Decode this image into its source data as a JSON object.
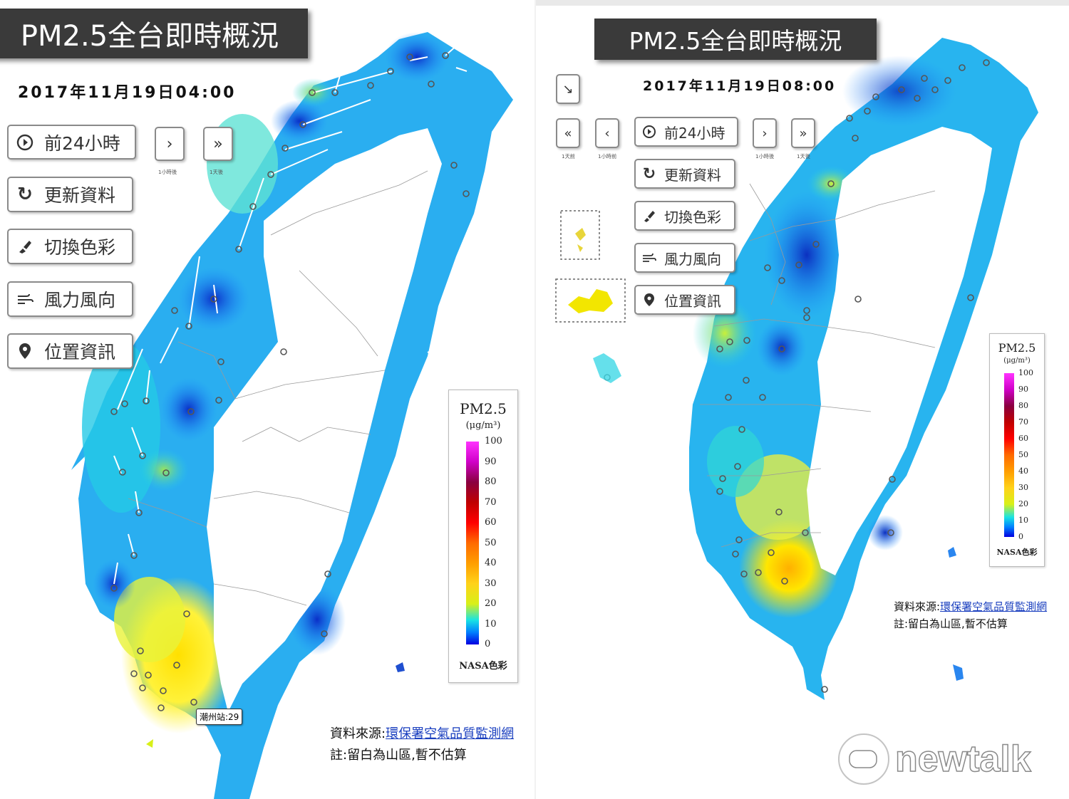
{
  "left": {
    "title": "PM2.5全台即時概況",
    "datetime": "2017年11月19日04:00",
    "buttons": {
      "prev24": "前24小時",
      "refresh": "更新資料",
      "color": "切換色彩",
      "wind": "風力風向",
      "location": "位置資訊"
    },
    "nav": {
      "next_hour_sub": "1小時後",
      "next_day_sub": "1天後"
    },
    "station_tag": "潮州站:29",
    "source_label": "資料來源:",
    "source_link": "環保署空氣品質監測網",
    "note": "註:留白為山區,暫不估算"
  },
  "right": {
    "title": "PM2.5全台即時概況",
    "datetime": "2017年11月19日08:00",
    "buttons": {
      "prev24": "前24小時",
      "refresh": "更新資料",
      "color": "切換色彩",
      "wind": "風力風向",
      "location": "位置資訊"
    },
    "nav": {
      "prev_day_sub": "1天前",
      "prev_hour_sub": "1小時前",
      "next_hour_sub": "1小時後",
      "next_day_sub": "1天後"
    },
    "source_label": "資料來源:",
    "source_link": "環保署空氣品質監測網",
    "note": "註:留白為山區,暫不估算"
  },
  "legend": {
    "title": "PM2.5",
    "unit": "(μg/m³)",
    "ticks": [
      "100",
      "90",
      "80",
      "70",
      "60",
      "50",
      "40",
      "30",
      "20",
      "10",
      "0"
    ],
    "scheme": "NASA色彩"
  },
  "watermark": {
    "text": "newtalk"
  },
  "colors": {
    "title_bg": "#3a3a3a",
    "low": "#1f4fd0",
    "mid": "#25b6f0",
    "high": "#ffe033",
    "link": "#1a3fbf"
  }
}
